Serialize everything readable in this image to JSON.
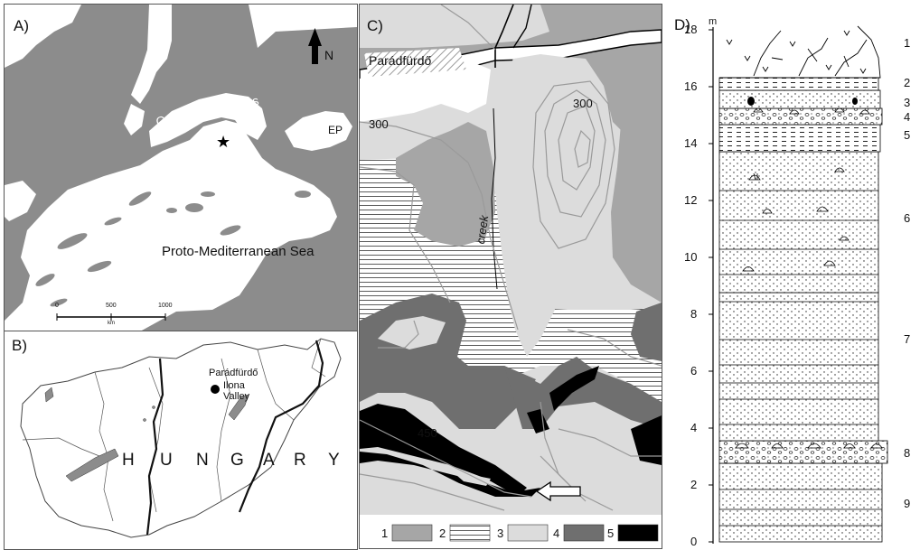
{
  "panel_a": {
    "label": "A)",
    "north": "N",
    "paratethys": "Central Paratethys",
    "sea": "Proto-Mediterranean Sea",
    "ep": "EP",
    "scale_ticks": [
      "0",
      "500",
      "1000"
    ],
    "scale_unit": "km"
  },
  "panel_b": {
    "label": "B)",
    "town": "Parádfürdő",
    "valley": "Ilona",
    "valley2": "Valley",
    "country": [
      "H",
      "U",
      "N",
      "G",
      "A",
      "R",
      "Y"
    ]
  },
  "panel_c": {
    "label": "C)",
    "town": "Parádfürdő",
    "contour_300a": "300",
    "contour_300b": "300",
    "contour_450": "450",
    "creek": "creek",
    "legend": [
      {
        "num": "1",
        "fill": "#a6a6a6"
      },
      {
        "num": "2",
        "fill": "hatch"
      },
      {
        "num": "3",
        "fill": "#dcdcdc"
      },
      {
        "num": "4",
        "fill": "#6f6f6f"
      },
      {
        "num": "5",
        "fill": "#000000"
      }
    ]
  },
  "panel_d": {
    "label": "D)",
    "unit": "m",
    "ticks": [
      "0",
      "2",
      "4",
      "6",
      "8",
      "10",
      "12",
      "14",
      "16",
      "18"
    ],
    "layers": [
      "1",
      "2",
      "3",
      "4",
      "5",
      "6",
      "7",
      "8",
      "9"
    ]
  }
}
